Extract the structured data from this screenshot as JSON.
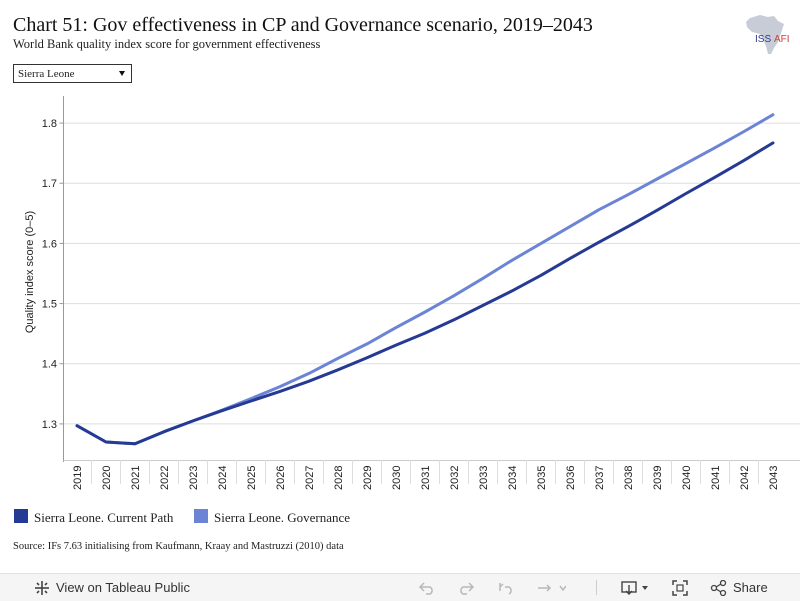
{
  "header": {
    "title": "Chart 51: Gov effectiveness in CP and Governance scenario, 2019–2043",
    "subtitle": "World Bank quality index score for government effectiveness"
  },
  "logo": {
    "text": "ISS",
    "suffix": "AFI"
  },
  "filter": {
    "selected": "Sierra Leone"
  },
  "chart_data": {
    "type": "line",
    "ylabel": "Quality index score (0–5)",
    "xlabel": "",
    "ylim": [
      1.24,
      1.845
    ],
    "y_ticks": [
      1.3,
      1.4,
      1.5,
      1.6,
      1.7,
      1.8
    ],
    "y_tick_labels": [
      "1.3",
      "1.4",
      "1.5",
      "1.6",
      "1.7",
      "1.8"
    ],
    "grid": true,
    "legend": "bottom-left",
    "x": [
      "2019",
      "2020",
      "2021",
      "2022",
      "2023",
      "2024",
      "2025",
      "2026",
      "2027",
      "2028",
      "2029",
      "2030",
      "2031",
      "2032",
      "2033",
      "2034",
      "2035",
      "2036",
      "2037",
      "2038",
      "2039",
      "2040",
      "2041",
      "2042",
      "2043"
    ],
    "series": [
      {
        "name": "Sierra Leone. Current Path",
        "color": "#253a94",
        "values": [
          1.297,
          1.27,
          1.267,
          1.287,
          1.305,
          1.322,
          1.338,
          1.354,
          1.371,
          1.39,
          1.41,
          1.431,
          1.451,
          1.473,
          1.497,
          1.521,
          1.547,
          1.575,
          1.602,
          1.628,
          1.655,
          1.683,
          1.71,
          1.738,
          1.767
        ]
      },
      {
        "name": "Sierra Leone. Governance",
        "color": "#6b84d6",
        "values": [
          1.297,
          1.27,
          1.267,
          1.287,
          1.305,
          1.323,
          1.342,
          1.362,
          1.384,
          1.409,
          1.433,
          1.46,
          1.486,
          1.513,
          1.542,
          1.572,
          1.6,
          1.628,
          1.656,
          1.681,
          1.707,
          1.733,
          1.759,
          1.786,
          1.814
        ]
      }
    ]
  },
  "legend": {
    "items": [
      {
        "label": "Sierra Leone. Current Path",
        "color": "#253a94"
      },
      {
        "label": "Sierra Leone. Governance",
        "color": "#6b84d6"
      }
    ]
  },
  "source": "Source: IFs 7.63 initialising from Kaufmann, Kraay and Mastruzzi (2010) data",
  "toolbar": {
    "view_label": "View on Tableau Public",
    "share_label": "Share",
    "icons": [
      "tableau-icon",
      "undo-icon",
      "redo-icon",
      "revert-icon",
      "refresh-icon",
      "download-icon",
      "fullscreen-icon",
      "share-icon"
    ]
  }
}
